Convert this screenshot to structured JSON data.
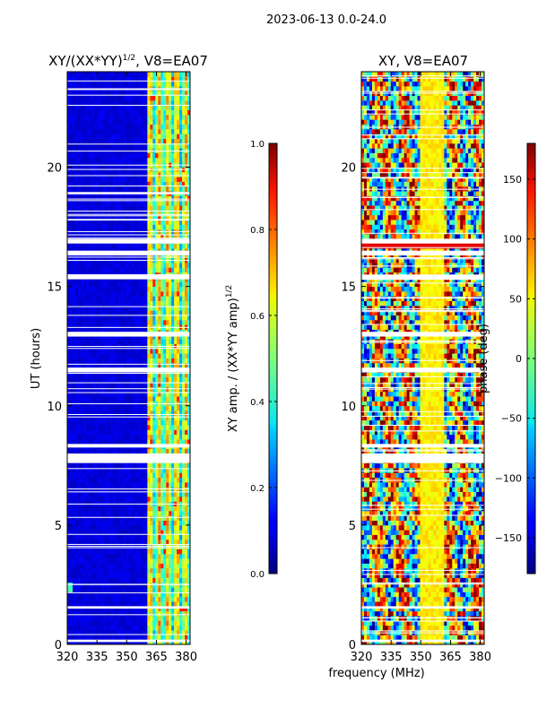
{
  "suptitle": "2023-06-13 0.0-24.0",
  "xlabel_shared": "frequency (MHz)",
  "chart_data": [
    {
      "type": "heatmap",
      "title": "XY/(XX*YY)^1/2, V8=EA07",
      "title_main": "XY/(XX*YY)",
      "title_exp": "1/2",
      "title_suffix": ", V8=EA07",
      "xlabel": "frequency (MHz)",
      "ylabel": "UT (hours)",
      "xlim": [
        320,
        382
      ],
      "ylim": [
        0,
        24
      ],
      "xticks": [
        320,
        335,
        350,
        365,
        380
      ],
      "yticks": [
        0,
        5,
        10,
        15,
        20
      ],
      "colorbar": {
        "label": "XY amp. / (XX*YY amp)^1/2",
        "label_main": "XY amp. / (XX*YY amp)",
        "label_exp": "1/2",
        "range": [
          0.0,
          1.0
        ],
        "ticks": [
          "0.0",
          "0.2",
          "0.4",
          "0.6",
          "0.8",
          "1.0"
        ],
        "tick_values": [
          0.0,
          0.2,
          0.4,
          0.6,
          0.8,
          1.0
        ],
        "colormap": "jet"
      },
      "description_bands": [
        {
          "freq_from": 320,
          "freq_to": 360,
          "typical_value": 0.08
        },
        {
          "freq_from": 360,
          "freq_to": 382,
          "typical_value": 0.45
        }
      ],
      "flagged_time_ranges_hours": [
        [
          7.6,
          8.0
        ],
        [
          8.25,
          8.4
        ],
        [
          11.4,
          11.6
        ],
        [
          12.9,
          13.1
        ],
        [
          15.3,
          15.5
        ],
        [
          16.3,
          16.5
        ],
        [
          16.8,
          17.0
        ],
        [
          1.5,
          1.6
        ],
        [
          0.1,
          0.2
        ]
      ]
    },
    {
      "type": "heatmap",
      "title": "XY, V8=EA07",
      "xlabel": "frequency (MHz)",
      "ylabel": "",
      "xlim": [
        320,
        382
      ],
      "ylim": [
        0,
        24
      ],
      "xticks": [
        320,
        335,
        350,
        365,
        380
      ],
      "yticks": [
        0,
        5,
        10,
        15,
        20
      ],
      "colorbar": {
        "label": "phase (deg)",
        "range": [
          -180,
          180
        ],
        "ticks": [
          "−150",
          "−100",
          "−50",
          "0",
          "50",
          "100",
          "150"
        ],
        "tick_values": [
          -150,
          -100,
          -50,
          0,
          50,
          100,
          150
        ],
        "colormap": "jet"
      },
      "flagged_time_ranges_hours": [
        [
          7.6,
          8.0
        ],
        [
          8.25,
          8.4
        ],
        [
          11.4,
          11.6
        ],
        [
          12.9,
          13.1
        ],
        [
          15.3,
          15.5
        ],
        [
          16.3,
          16.5
        ],
        [
          16.8,
          17.0
        ],
        [
          1.5,
          1.6
        ],
        [
          0.1,
          0.2
        ]
      ]
    }
  ]
}
